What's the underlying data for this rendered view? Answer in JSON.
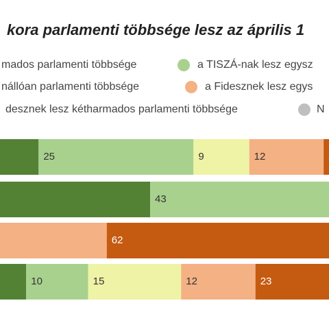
{
  "chart_data": {
    "type": "stacked-bar-horizontal",
    "title": "kora parlamenti többsége lesz az április 1",
    "categories": [
      null,
      null,
      null,
      null
    ],
    "series": [
      {
        "name": "mados parlamenti többsége",
        "color": "#548235",
        "values": [
          8,
          26,
          null,
          6
        ]
      },
      {
        "name": "a TISZÁ-nak lesz egysz",
        "color": "#a9d18e",
        "values": [
          25,
          43,
          null,
          10
        ]
      },
      {
        "name": "nállóan parlamenti többsége",
        "color": "#eef3a6",
        "values": [
          9,
          null,
          null,
          15
        ]
      },
      {
        "name": "a Fidesznek lesz egys",
        "color": "#f4b183",
        "values": [
          12,
          null,
          19,
          12
        ]
      },
      {
        "name": "desznek lesz kétharmados parlamenti többsége",
        "color": "#c55a11",
        "values": [
          2,
          null,
          62,
          23
        ]
      },
      {
        "name": "N",
        "color": "#bfbfbf",
        "values": [
          null,
          null,
          null,
          null
        ]
      }
    ]
  }
}
